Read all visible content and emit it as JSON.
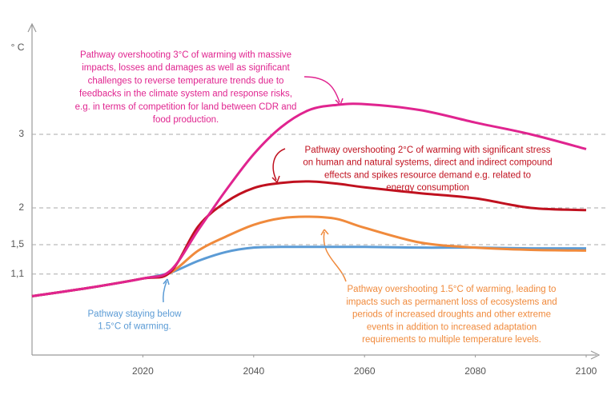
{
  "chart_data": {
    "type": "line",
    "y_label": "° C",
    "x": [
      2000,
      2010,
      2020,
      2025,
      2030,
      2035,
      2040,
      2045,
      2050,
      2055,
      2060,
      2070,
      2080,
      2090,
      2100
    ],
    "xlim": [
      2000,
      2100
    ],
    "xticks": [
      2020,
      2040,
      2060,
      2080,
      2100
    ],
    "ylim": [
      0,
      4.5
    ],
    "yticks": [
      {
        "value": 1.1,
        "label": "1,1"
      },
      {
        "value": 1.5,
        "label": "1,5"
      },
      2,
      3
    ],
    "grid": true,
    "series": [
      {
        "color": "#e0248f",
        "values": [
          0.8,
          0.91,
          1.04,
          1.15,
          1.7,
          2.24,
          2.73,
          3.1,
          3.33,
          3.4,
          3.41,
          3.33,
          3.16,
          3.0,
          2.8
        ]
      },
      {
        "color": "#c0111f",
        "values": [
          0.8,
          0.91,
          1.04,
          1.13,
          1.75,
          2.08,
          2.27,
          2.34,
          2.36,
          2.33,
          2.28,
          2.2,
          2.13,
          2.0,
          1.97
        ]
      },
      {
        "color": "#f08a3c",
        "values": [
          0.8,
          0.91,
          1.04,
          1.12,
          1.42,
          1.61,
          1.77,
          1.86,
          1.88,
          1.85,
          1.73,
          1.53,
          1.46,
          1.43,
          1.42
        ]
      },
      {
        "color": "#5b9bd5",
        "values": [
          0.8,
          0.91,
          1.04,
          1.12,
          1.28,
          1.4,
          1.46,
          1.47,
          1.47,
          1.47,
          1.47,
          1.46,
          1.46,
          1.45,
          1.45
        ]
      }
    ],
    "annotations": [
      {
        "color": "#e0248f",
        "lines": [
          "Pathway overshooting 3°C of warming with massive",
          "impacts, losses and damages as well as significant",
          "challenges to reverse temperature trends due to",
          "feedbacks in the climate system and response risks,",
          "e.g. in terms of competition for land between CDR and",
          "food production."
        ]
      },
      {
        "color": "#c0111f",
        "lines": [
          "Pathway overshooting 2°C of warming with significant stress",
          "on human and natural systems, direct and indirect compound",
          "effects and spikes resource demand e.g. related to",
          "energy consumption"
        ]
      },
      {
        "color": "#f08a3c",
        "lines": [
          "Pathway overshooting 1.5°C of warming, leading to",
          "impacts such as permanent loss of ecosystems and",
          "periods of increased droughts and other extreme",
          "events in addition to increased adaptation",
          "requirements to multiple temperature levels."
        ]
      },
      {
        "color": "#5b9bd5",
        "lines": [
          "Pathway staying below",
          "1.5°C of warming."
        ]
      }
    ]
  }
}
